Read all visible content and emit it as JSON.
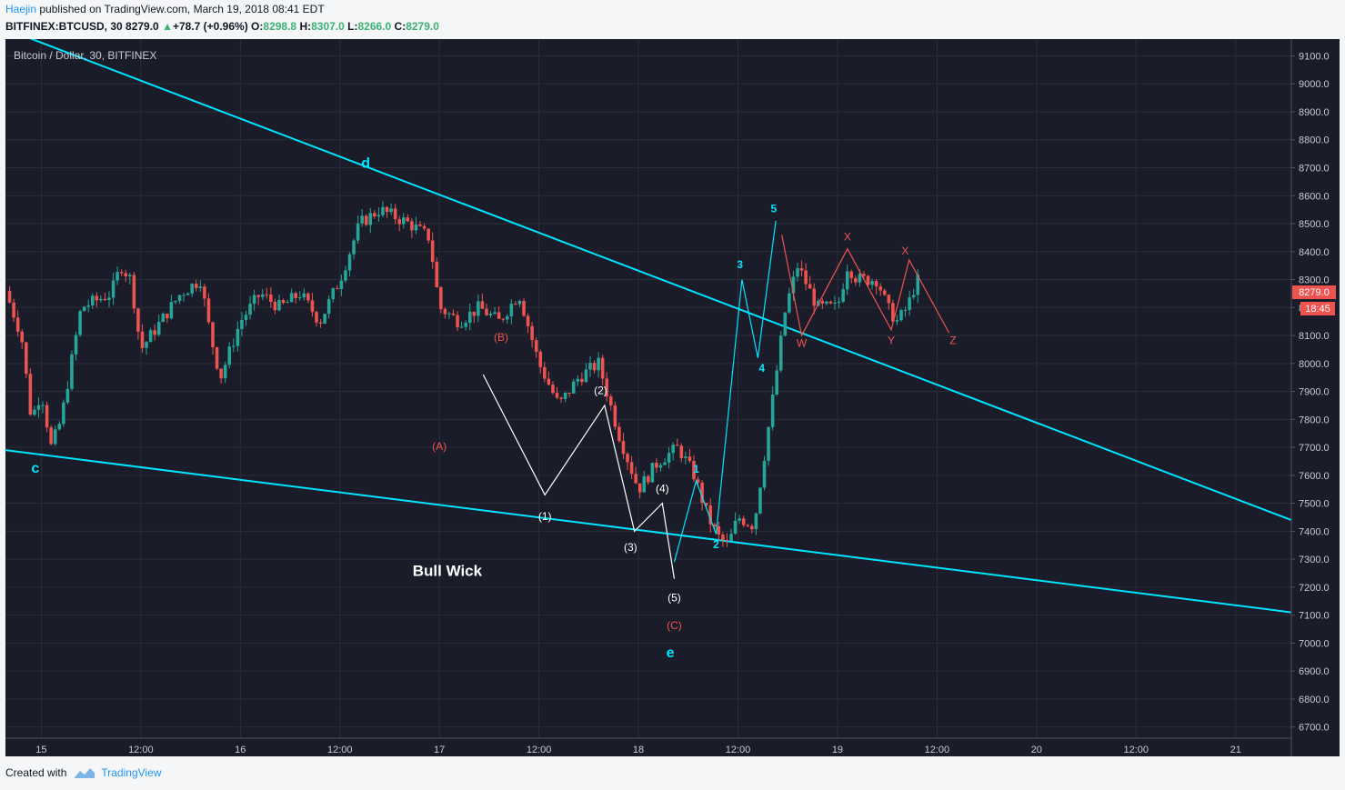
{
  "header": {
    "author": "Haejin",
    "published": "published on TradingView.com, March 19, 2018 08:41 EDT",
    "symbol": "BITFINEX:BTCUSD, 30",
    "last": "8279.0",
    "change": "+78.7 (+0.96%)",
    "o_label": "O:",
    "o": "8298.8",
    "h_label": "H:",
    "h": "8307.0",
    "l_label": "L:",
    "l": "8266.0",
    "c_label": "C:",
    "c": "8279.0"
  },
  "chart_data": {
    "type": "candlestick",
    "title": "Bitcoin / Dollar, 30, BITFINEX",
    "ylim": [
      6660,
      9160
    ],
    "y_ticks": [
      6700,
      6800,
      6900,
      7000,
      7100,
      7200,
      7300,
      7400,
      7500,
      7600,
      7700,
      7800,
      7900,
      8000,
      8100,
      8200,
      8300,
      8400,
      8500,
      8600,
      8700,
      8800,
      8900,
      9000,
      9100
    ],
    "y_tick_labels": [
      "6700.0",
      "6800.0",
      "6900.0",
      "7000.0",
      "7100.0",
      "7200.0",
      "7300.0",
      "7400.0",
      "7500.0",
      "7600.0",
      "7700.0",
      "7800.0",
      "7900.0",
      "8000.0",
      "8100.0",
      "8200.0",
      "8300.0",
      "8400.0",
      "8500.0",
      "8600.0",
      "8700.0",
      "8800.0",
      "8900.0",
      "9000.0",
      "9100.0"
    ],
    "x_ticks": [
      {
        "t": 0,
        "label": "15"
      },
      {
        "t": 0.5,
        "label": "12:00"
      },
      {
        "t": 1,
        "label": "16"
      },
      {
        "t": 1.5,
        "label": "12:00"
      },
      {
        "t": 2,
        "label": "17"
      },
      {
        "t": 2.5,
        "label": "12:00"
      },
      {
        "t": 3,
        "label": "18"
      },
      {
        "t": 3.5,
        "label": "12:00"
      },
      {
        "t": 4,
        "label": "19"
      },
      {
        "t": 4.5,
        "label": "12:00"
      },
      {
        "t": 5,
        "label": "20"
      },
      {
        "t": 5.5,
        "label": "12:00"
      },
      {
        "t": 6,
        "label": "21"
      }
    ],
    "xlim": [
      -0.18,
      6.28
    ],
    "price_tag": "8279.0",
    "countdown": "18:45",
    "grid": true,
    "colors": {
      "up": "#26a69a",
      "down": "#ef5350",
      "trend": "#00e5ff",
      "wave_white": "#ffffff",
      "wave_red": "#ef5350",
      "wave_cyan": "#00e5ff",
      "bg": "#1a1d29",
      "grid": "#2a2e39"
    },
    "anchors": [
      [
        -0.18,
        8260
      ],
      [
        -0.1,
        8100
      ],
      [
        -0.05,
        7800
      ],
      [
        0,
        7900
      ],
      [
        0.05,
        7700
      ],
      [
        0.1,
        7800
      ],
      [
        0.2,
        8200
      ],
      [
        0.35,
        8250
      ],
      [
        0.4,
        8350
      ],
      [
        0.45,
        8300
      ],
      [
        0.5,
        8050
      ],
      [
        0.6,
        8150
      ],
      [
        0.7,
        8250
      ],
      [
        0.8,
        8300
      ],
      [
        0.85,
        8100
      ],
      [
        0.9,
        7950
      ],
      [
        1,
        8150
      ],
      [
        1.1,
        8250
      ],
      [
        1.2,
        8200
      ],
      [
        1.3,
        8250
      ],
      [
        1.4,
        8150
      ],
      [
        1.5,
        8300
      ],
      [
        1.6,
        8500
      ],
      [
        1.7,
        8550
      ],
      [
        1.85,
        8500
      ],
      [
        1.95,
        8450
      ],
      [
        2,
        8200
      ],
      [
        2.1,
        8150
      ],
      [
        2.2,
        8200
      ],
      [
        2.3,
        8150
      ],
      [
        2.4,
        8250
      ],
      [
        2.5,
        8000
      ],
      [
        2.6,
        7850
      ],
      [
        2.7,
        7950
      ],
      [
        2.8,
        8000
      ],
      [
        2.9,
        7750
      ],
      [
        3,
        7550
      ],
      [
        3.1,
        7650
      ],
      [
        3.2,
        7700
      ],
      [
        3.28,
        7600
      ],
      [
        3.35,
        7450
      ],
      [
        3.4,
        7380
      ],
      [
        3.45,
        7350
      ],
      [
        3.5,
        7450
      ],
      [
        3.58,
        7420
      ],
      [
        3.68,
        7900
      ],
      [
        3.74,
        8200
      ],
      [
        3.8,
        8350
      ],
      [
        3.9,
        8200
      ],
      [
        4,
        8200
      ],
      [
        4.05,
        8350
      ],
      [
        4.1,
        8300
      ],
      [
        4.2,
        8300
      ],
      [
        4.25,
        8200
      ],
      [
        4.3,
        8150
      ],
      [
        4.35,
        8200
      ],
      [
        4.4,
        8300
      ],
      [
        4.42,
        8279
      ]
    ],
    "trendlines": [
      {
        "points": [
          [
            -0.12,
            9180
          ],
          [
            6.28,
            7440
          ]
        ]
      },
      {
        "points": [
          [
            -0.18,
            7690
          ],
          [
            6.28,
            7110
          ]
        ]
      }
    ],
    "waves": [
      {
        "color": "white",
        "points": [
          [
            2.22,
            7960
          ],
          [
            2.53,
            7530
          ],
          [
            2.83,
            7850
          ],
          [
            2.98,
            7400
          ],
          [
            3.12,
            7500
          ],
          [
            3.18,
            7230
          ]
        ]
      },
      {
        "color": "cyan",
        "points": [
          [
            3.18,
            7290
          ],
          [
            3.29,
            7580
          ],
          [
            3.39,
            7390
          ],
          [
            3.52,
            8300
          ],
          [
            3.6,
            8020
          ],
          [
            3.69,
            8510
          ]
        ]
      },
      {
        "color": "red",
        "points": [
          [
            3.72,
            8460
          ],
          [
            3.82,
            8100
          ],
          [
            4.05,
            8410
          ],
          [
            4.27,
            8120
          ],
          [
            4.36,
            8370
          ],
          [
            4.56,
            8110
          ]
        ]
      }
    ],
    "annotations": [
      {
        "text": "c",
        "t": -0.03,
        "v": 7610,
        "color": "cyan",
        "size": 16,
        "bold": true
      },
      {
        "text": "d",
        "t": 1.63,
        "v": 8700,
        "color": "cyan",
        "size": 16,
        "bold": true
      },
      {
        "text": "(A)",
        "t": 2.0,
        "v": 7690,
        "color": "red",
        "size": 12
      },
      {
        "text": "(B)",
        "t": 2.31,
        "v": 8080,
        "color": "red",
        "size": 12
      },
      {
        "text": "(1)",
        "t": 2.53,
        "v": 7440,
        "color": "white",
        "size": 12
      },
      {
        "text": "(2)",
        "t": 2.81,
        "v": 7890,
        "color": "white",
        "size": 12
      },
      {
        "text": "(3)",
        "t": 2.96,
        "v": 7330,
        "color": "white",
        "size": 12
      },
      {
        "text": "(4)",
        "t": 3.12,
        "v": 7540,
        "color": "white",
        "size": 12
      },
      {
        "text": "(5)",
        "t": 3.18,
        "v": 7150,
        "color": "white",
        "size": 12
      },
      {
        "text": "(C)",
        "t": 3.18,
        "v": 7050,
        "color": "red",
        "size": 12
      },
      {
        "text": "e",
        "t": 3.16,
        "v": 6950,
        "color": "cyan",
        "size": 16,
        "bold": true
      },
      {
        "text": "1",
        "t": 3.29,
        "v": 7610,
        "color": "cyan",
        "size": 12,
        "bold": true
      },
      {
        "text": "2",
        "t": 3.39,
        "v": 7340,
        "color": "cyan",
        "size": 12,
        "bold": true
      },
      {
        "text": "3",
        "t": 3.51,
        "v": 8340,
        "color": "cyan",
        "size": 12,
        "bold": true
      },
      {
        "text": "4",
        "t": 3.62,
        "v": 7970,
        "color": "cyan",
        "size": 12,
        "bold": true
      },
      {
        "text": "5",
        "t": 3.68,
        "v": 8540,
        "color": "cyan",
        "size": 12,
        "bold": true
      },
      {
        "text": "W",
        "t": 3.82,
        "v": 8060,
        "color": "red",
        "size": 12
      },
      {
        "text": "X",
        "t": 4.05,
        "v": 8440,
        "color": "red",
        "size": 12
      },
      {
        "text": "Y",
        "t": 4.27,
        "v": 8070,
        "color": "red",
        "size": 12
      },
      {
        "text": "X",
        "t": 4.34,
        "v": 8390,
        "color": "red",
        "size": 12
      },
      {
        "text": "Z",
        "t": 4.58,
        "v": 8070,
        "color": "red",
        "size": 12
      },
      {
        "text": "Bull Wick",
        "t": 2.04,
        "v": 7240,
        "color": "white",
        "size": 17,
        "bold": true
      }
    ]
  },
  "footer": {
    "created_with": "Created with",
    "brand": "TradingView"
  }
}
